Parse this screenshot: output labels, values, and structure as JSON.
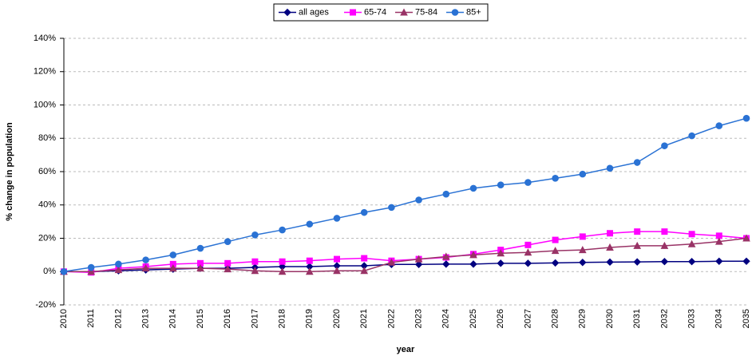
{
  "chart_data": {
    "type": "line",
    "x_label": "year",
    "y_label": "% change in population",
    "categories": [
      "2010",
      "2011",
      "2012",
      "2013",
      "2014",
      "2015",
      "2016",
      "2017",
      "2018",
      "2019",
      "2020",
      "2021",
      "2022",
      "2023",
      "2024",
      "2025",
      "2026",
      "2027",
      "2028",
      "2029",
      "2030",
      "2031",
      "2032",
      "2033",
      "2034",
      "2035"
    ],
    "series": [
      {
        "name": "all ages",
        "color": "#000080",
        "marker": "diamond",
        "values": [
          0,
          0,
          0.5,
          1,
          1.5,
          2,
          2,
          2.5,
          3,
          3,
          3.5,
          3.5,
          4.3,
          4.3,
          4.5,
          4.5,
          5,
          5,
          5.2,
          5.5,
          5.7,
          5.8,
          6,
          6,
          6.2,
          6.2
        ]
      },
      {
        "name": "65-74",
        "color": "#ff00ff",
        "marker": "square",
        "values": [
          0,
          -0.5,
          2,
          3,
          4.5,
          5,
          5,
          6,
          6,
          6.5,
          7.5,
          8,
          6.5,
          7.5,
          8.5,
          10.5,
          13,
          16,
          19,
          21,
          23,
          24,
          24,
          22.5,
          21.5,
          20
        ]
      },
      {
        "name": "75-84",
        "color": "#993366",
        "marker": "triangle",
        "values": [
          0,
          0,
          1,
          2,
          2,
          2,
          1.5,
          0.5,
          0,
          0,
          0.5,
          0.5,
          5.5,
          7.5,
          9,
          10,
          11,
          11.5,
          12.5,
          13,
          14.5,
          15.5,
          15.5,
          16.5,
          18,
          20
        ]
      },
      {
        "name": "85+",
        "color": "#2a72d4",
        "marker": "circle",
        "values": [
          0,
          2.5,
          4.5,
          7,
          10,
          14,
          18,
          22,
          25,
          28.5,
          32,
          35.5,
          38.5,
          43,
          46.5,
          50,
          52,
          53.5,
          56,
          58.5,
          62,
          65.5,
          75.5,
          81.5,
          87.5,
          92
        ]
      }
    ],
    "ylim": [
      -20,
      140
    ],
    "yticks": [
      {
        "value": -20,
        "label": "-20%"
      },
      {
        "value": 0,
        "label": "0%"
      },
      {
        "value": 20,
        "label": "20%"
      },
      {
        "value": 40,
        "label": "40%"
      },
      {
        "value": 60,
        "label": "60%"
      },
      {
        "value": 80,
        "label": "80%"
      },
      {
        "value": 100,
        "label": "100%"
      },
      {
        "value": 120,
        "label": "120%"
      },
      {
        "value": 140,
        "label": "140%"
      }
    ],
    "grid": true,
    "legend": "top"
  }
}
